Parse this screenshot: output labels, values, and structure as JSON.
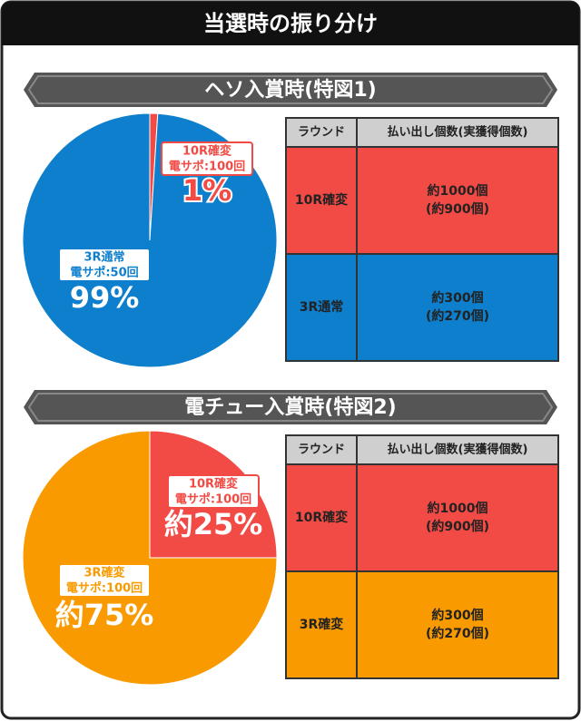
{
  "title": "当選時の振り分け",
  "chart_data": [
    {
      "type": "pie",
      "title": "ヘソ入賞時(特図1)",
      "categories": [
        [
          "10R確変",
          "電サポ:100回"
        ],
        [
          "3R通常",
          "電サポ:50回"
        ]
      ],
      "values": [
        1,
        99
      ],
      "value_labels": [
        "1%",
        "99%"
      ],
      "colors": [
        "#f24a44",
        "#0e7fcd"
      ]
    },
    {
      "type": "pie",
      "title": "電チュー入賞時(特図2)",
      "categories": [
        [
          "10R確変",
          "電サポ:100回"
        ],
        [
          "3R確変",
          "電サポ:100回"
        ]
      ],
      "values": [
        25,
        75
      ],
      "value_labels": [
        "約25%",
        "約75%"
      ],
      "colors": [
        "#f24a44",
        "#f99a00"
      ]
    }
  ],
  "tables": [
    {
      "header": [
        "ラウンド",
        "払い出し個数(実獲得個数)"
      ],
      "rows": [
        [
          [
            "10R確変"
          ],
          [
            "約1000個",
            "(約900個)"
          ]
        ],
        [
          [
            "3R通常"
          ],
          [
            "約300個",
            "(約270個)"
          ]
        ]
      ]
    },
    {
      "header": [
        "ラウンド",
        "払い出し個数(実獲得個数)"
      ],
      "rows": [
        [
          [
            "10R確変"
          ],
          [
            "約1000個",
            "(約900個)"
          ]
        ],
        [
          [
            "3R確変"
          ],
          [
            "約300個",
            "(約270個)"
          ]
        ]
      ]
    }
  ]
}
